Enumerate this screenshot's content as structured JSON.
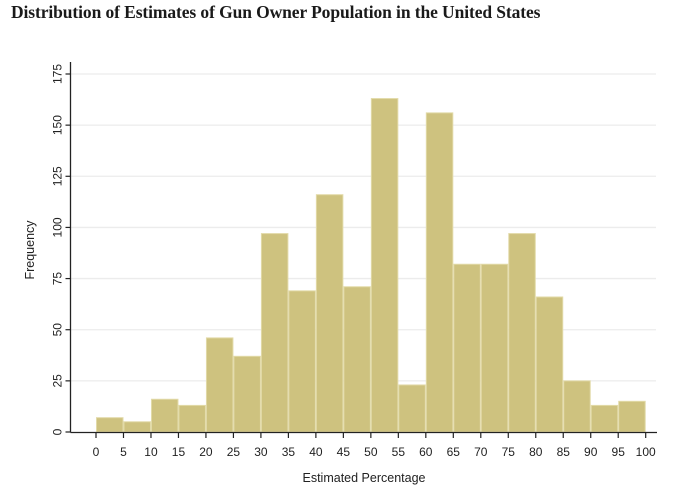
{
  "chart_data": {
    "type": "bar",
    "subtype": "histogram",
    "title": "Distribution of Estimates of Gun Owner Population in the United States",
    "xlabel": "Estimated Percentage",
    "ylabel": "Frequency",
    "bin_width": 5,
    "bins": [
      {
        "start": 0,
        "end": 5,
        "value": 7
      },
      {
        "start": 5,
        "end": 10,
        "value": 5
      },
      {
        "start": 10,
        "end": 15,
        "value": 16
      },
      {
        "start": 15,
        "end": 20,
        "value": 13
      },
      {
        "start": 20,
        "end": 25,
        "value": 46
      },
      {
        "start": 25,
        "end": 30,
        "value": 37
      },
      {
        "start": 30,
        "end": 35,
        "value": 97
      },
      {
        "start": 35,
        "end": 40,
        "value": 69
      },
      {
        "start": 40,
        "end": 45,
        "value": 116
      },
      {
        "start": 45,
        "end": 50,
        "value": 71
      },
      {
        "start": 50,
        "end": 55,
        "value": 163
      },
      {
        "start": 55,
        "end": 60,
        "value": 23
      },
      {
        "start": 60,
        "end": 65,
        "value": 156
      },
      {
        "start": 65,
        "end": 70,
        "value": 82
      },
      {
        "start": 70,
        "end": 75,
        "value": 82
      },
      {
        "start": 75,
        "end": 80,
        "value": 97
      },
      {
        "start": 80,
        "end": 85,
        "value": 66
      },
      {
        "start": 85,
        "end": 90,
        "value": 25
      },
      {
        "start": 90,
        "end": 95,
        "value": 13
      },
      {
        "start": 95,
        "end": 100,
        "value": 15
      }
    ],
    "xticks": [
      0,
      5,
      10,
      15,
      20,
      25,
      30,
      35,
      40,
      45,
      50,
      55,
      60,
      65,
      70,
      75,
      80,
      85,
      90,
      95,
      100
    ],
    "yticks": [
      0,
      25,
      50,
      75,
      100,
      125,
      150,
      175
    ],
    "xlim": [
      0,
      100
    ],
    "ylim": [
      0,
      175
    ],
    "grid": "horizontal",
    "legend": "none",
    "colors": {
      "bar_fill": "#cec27f",
      "bar_edge": "#e2daa8",
      "grid": "#ececec",
      "axis": "#222222"
    }
  }
}
